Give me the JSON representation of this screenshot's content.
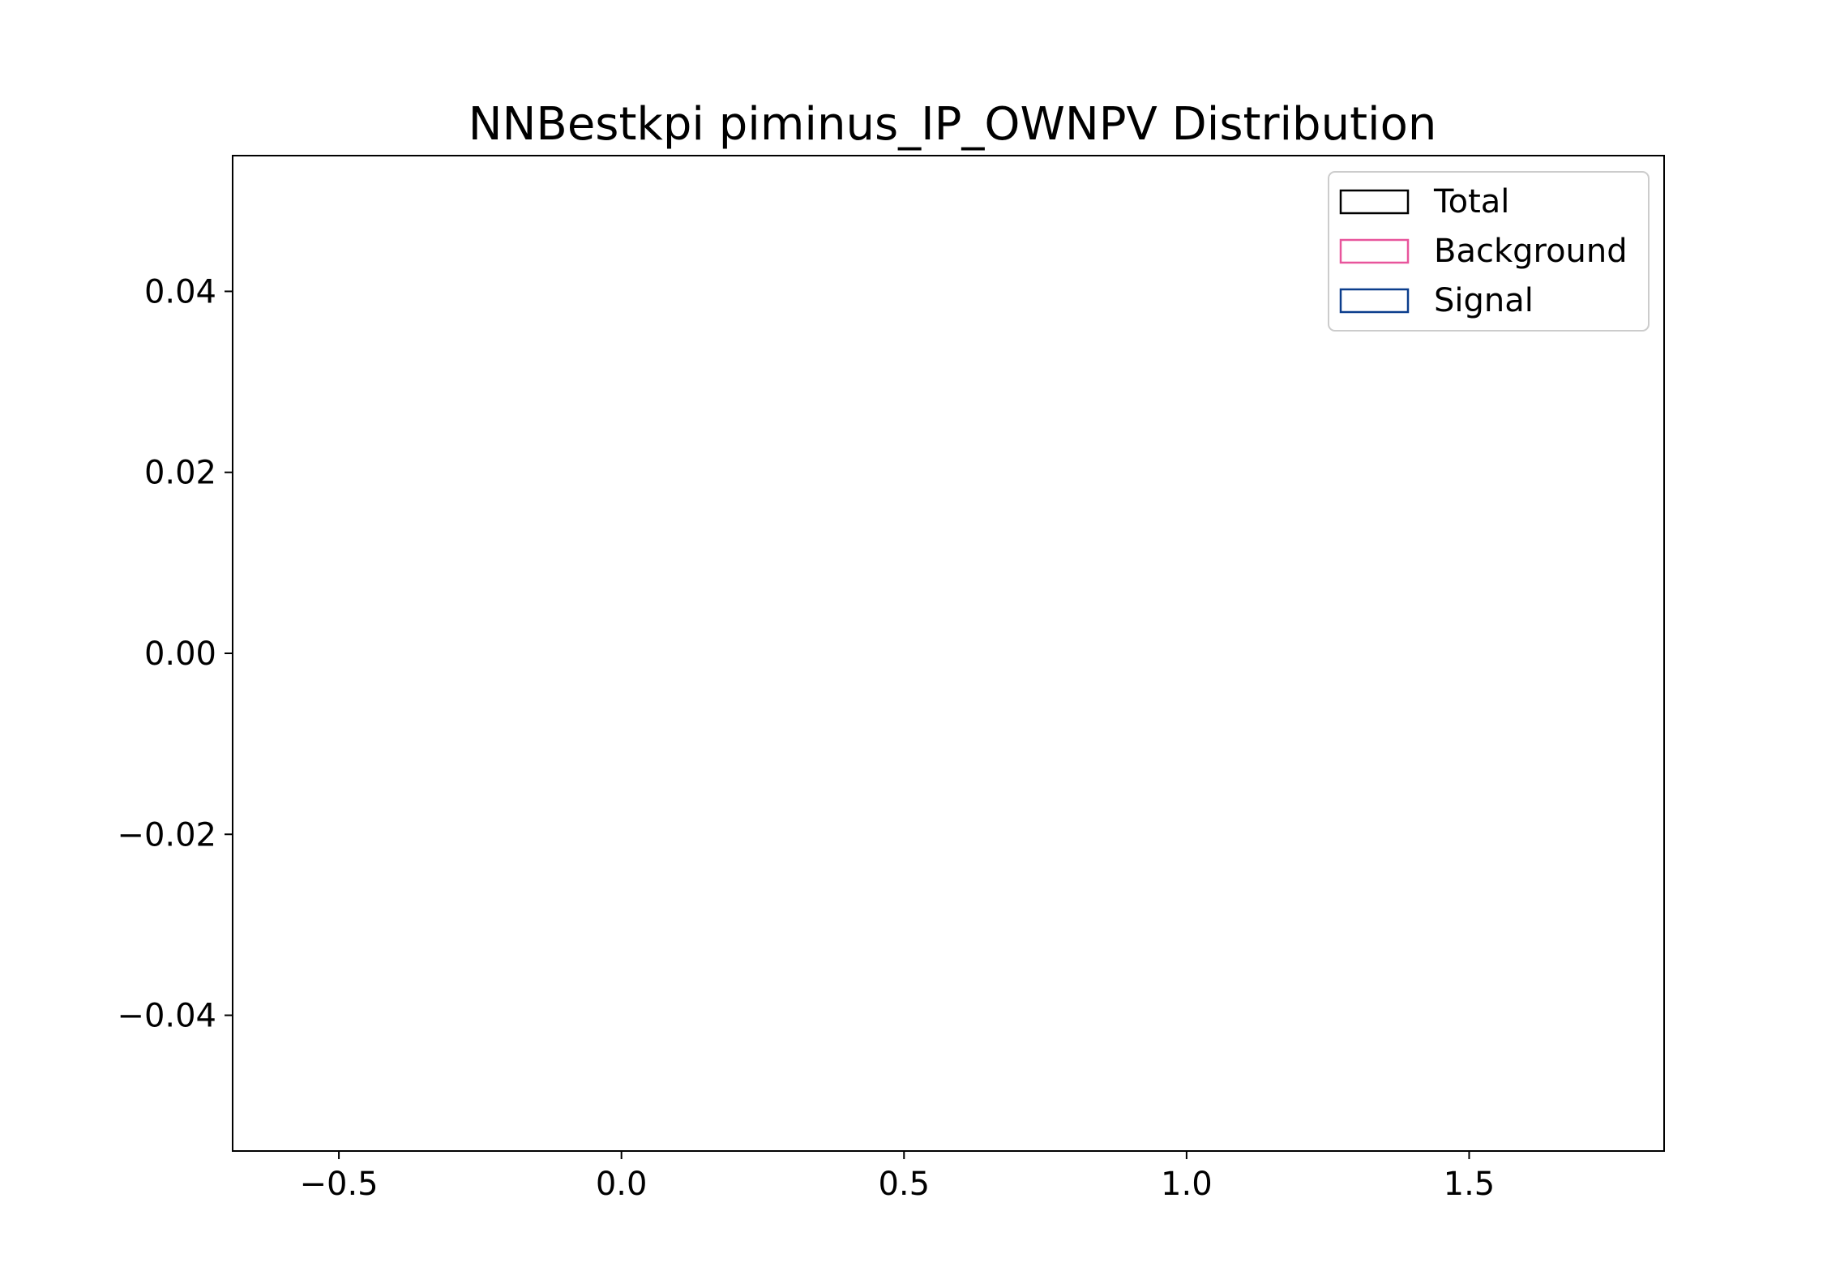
{
  "chart_data": {
    "type": "bar",
    "title": "NNBestkpi piminus_IP_OWNPV Distribution",
    "xlabel": "",
    "ylabel": "",
    "xlim": [
      -0.688,
      1.845
    ],
    "ylim": [
      -0.055,
      0.055
    ],
    "x_ticks": [
      -0.5,
      0.0,
      0.5,
      1.0,
      1.5
    ],
    "x_tick_labels": [
      "−0.5",
      "0.0",
      "0.5",
      "1.0",
      "1.5"
    ],
    "y_ticks": [
      0.04,
      0.02,
      0.0,
      -0.02,
      -0.04
    ],
    "y_tick_labels": [
      "0.04",
      "0.02",
      "0.00",
      "−0.02",
      "−0.04"
    ],
    "grid": false,
    "legend_position": "top-right",
    "series": [
      {
        "name": "Total",
        "color": "#000000",
        "values": []
      },
      {
        "name": "Background",
        "color": "#e8559c",
        "values": []
      },
      {
        "name": "Signal",
        "color": "#0b3d8c",
        "values": []
      }
    ]
  }
}
